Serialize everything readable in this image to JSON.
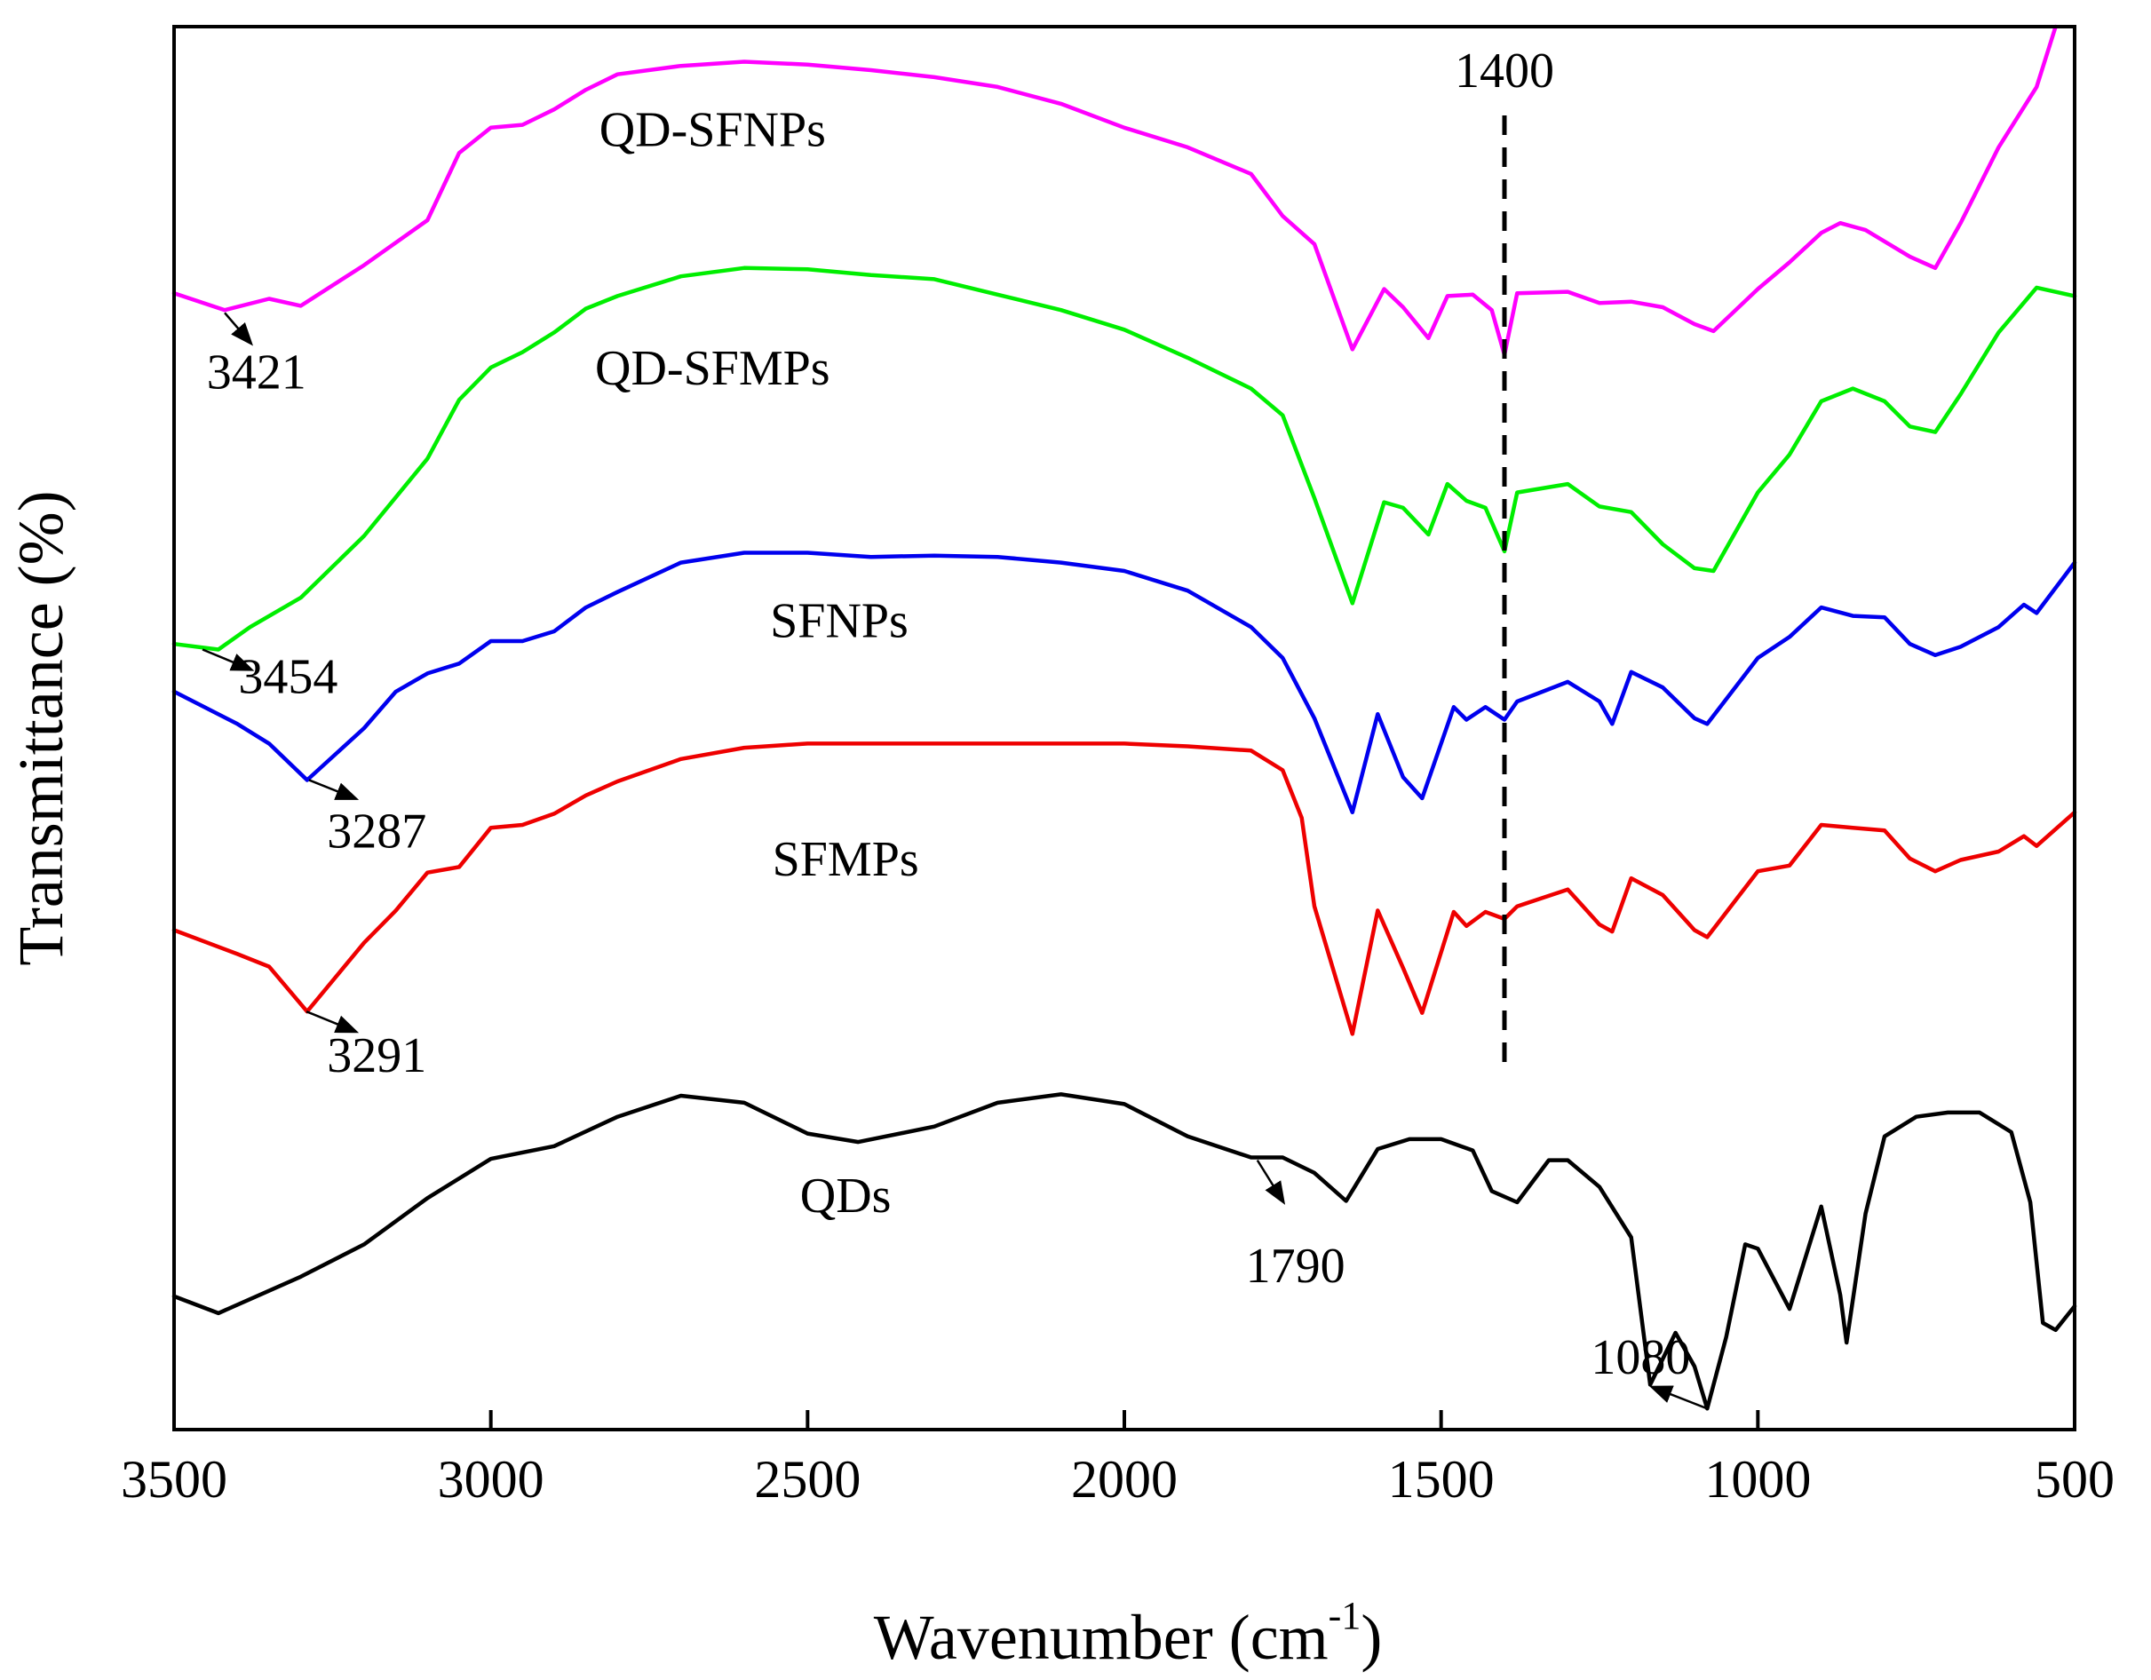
{
  "chart_data": {
    "type": "line",
    "title": "",
    "xlabel": "Wavenumber (cm",
    "xlabel_sup": "-1",
    "xlabel_close": ")",
    "ylabel": "Transmittance (%)",
    "xlim": [
      3500,
      500
    ],
    "x_reversed": true,
    "x_ticks": [
      "3500",
      "3000",
      "2500",
      "2000",
      "1500",
      "1000",
      "500"
    ],
    "x_tick_values": [
      3500,
      3000,
      2500,
      2000,
      1500,
      1000,
      500
    ],
    "ylim": [
      0,
      100
    ],
    "y_ticks_shown": false,
    "grid": false,
    "legend": "none",
    "reference_line": {
      "x": 1400,
      "label": "1400",
      "style": "dashed"
    },
    "series": [
      {
        "name": "QD-SFNPs",
        "color": "#ff00ff",
        "points": [
          [
            3500,
            81
          ],
          [
            3420,
            79.8
          ],
          [
            3350,
            80.6
          ],
          [
            3300,
            80.1
          ],
          [
            3200,
            83
          ],
          [
            3100,
            86.2
          ],
          [
            3050,
            91
          ],
          [
            3000,
            92.8
          ],
          [
            2950,
            93
          ],
          [
            2900,
            94.1
          ],
          [
            2850,
            95.5
          ],
          [
            2800,
            96.6
          ],
          [
            2700,
            97.2
          ],
          [
            2600,
            97.5
          ],
          [
            2500,
            97.3
          ],
          [
            2400,
            96.9
          ],
          [
            2300,
            96.4
          ],
          [
            2200,
            95.7
          ],
          [
            2100,
            94.5
          ],
          [
            2000,
            92.8
          ],
          [
            1900,
            91.4
          ],
          [
            1800,
            89.5
          ],
          [
            1750,
            86.5
          ],
          [
            1700,
            84.5
          ],
          [
            1640,
            77
          ],
          [
            1590,
            81.3
          ],
          [
            1560,
            80
          ],
          [
            1520,
            77.8
          ],
          [
            1490,
            80.8
          ],
          [
            1450,
            80.9
          ],
          [
            1420,
            79.8
          ],
          [
            1400,
            76.6
          ],
          [
            1380,
            81
          ],
          [
            1300,
            81.1
          ],
          [
            1250,
            80.3
          ],
          [
            1200,
            80.4
          ],
          [
            1150,
            80
          ],
          [
            1100,
            78.8
          ],
          [
            1070,
            78.3
          ],
          [
            1000,
            81.3
          ],
          [
            950,
            83.2
          ],
          [
            900,
            85.3
          ],
          [
            870,
            86
          ],
          [
            830,
            85.5
          ],
          [
            760,
            83.6
          ],
          [
            720,
            82.8
          ],
          [
            680,
            86
          ],
          [
            620,
            91.4
          ],
          [
            560,
            95.7
          ],
          [
            530,
            100
          ]
        ]
      },
      {
        "name": "QD-SFMPs",
        "color": "#00ee00",
        "points": [
          [
            3500,
            56
          ],
          [
            3430,
            55.6
          ],
          [
            3380,
            57.2
          ],
          [
            3300,
            59.3
          ],
          [
            3200,
            63.7
          ],
          [
            3100,
            69.2
          ],
          [
            3050,
            73.4
          ],
          [
            3000,
            75.7
          ],
          [
            2950,
            76.8
          ],
          [
            2900,
            78.2
          ],
          [
            2850,
            79.9
          ],
          [
            2800,
            80.8
          ],
          [
            2700,
            82.2
          ],
          [
            2600,
            82.8
          ],
          [
            2500,
            82.7
          ],
          [
            2400,
            82.3
          ],
          [
            2300,
            82
          ],
          [
            2200,
            80.9
          ],
          [
            2100,
            79.8
          ],
          [
            2000,
            78.4
          ],
          [
            1900,
            76.4
          ],
          [
            1800,
            74.2
          ],
          [
            1750,
            72.3
          ],
          [
            1700,
            66.4
          ],
          [
            1640,
            58.9
          ],
          [
            1590,
            66.1
          ],
          [
            1560,
            65.7
          ],
          [
            1520,
            63.8
          ],
          [
            1490,
            67.4
          ],
          [
            1460,
            66.2
          ],
          [
            1430,
            65.7
          ],
          [
            1400,
            62.6
          ],
          [
            1380,
            66.8
          ],
          [
            1300,
            67.4
          ],
          [
            1250,
            65.8
          ],
          [
            1200,
            65.4
          ],
          [
            1150,
            63.1
          ],
          [
            1100,
            61.4
          ],
          [
            1070,
            61.2
          ],
          [
            1000,
            66.8
          ],
          [
            950,
            69.5
          ],
          [
            900,
            73.3
          ],
          [
            850,
            74.2
          ],
          [
            800,
            73.3
          ],
          [
            760,
            71.5
          ],
          [
            720,
            71.1
          ],
          [
            680,
            73.8
          ],
          [
            620,
            78.2
          ],
          [
            560,
            81.4
          ],
          [
            500,
            80.8
          ]
        ]
      },
      {
        "name": "SFNPs",
        "color": "#0000ee",
        "points": [
          [
            3500,
            52.6
          ],
          [
            3400,
            50.3
          ],
          [
            3350,
            48.9
          ],
          [
            3290,
            46.3
          ],
          [
            3200,
            50
          ],
          [
            3150,
            52.6
          ],
          [
            3100,
            53.9
          ],
          [
            3050,
            54.6
          ],
          [
            3000,
            56.2
          ],
          [
            2950,
            56.2
          ],
          [
            2900,
            56.9
          ],
          [
            2850,
            58.6
          ],
          [
            2800,
            59.7
          ],
          [
            2700,
            61.8
          ],
          [
            2600,
            62.5
          ],
          [
            2500,
            62.5
          ],
          [
            2400,
            62.2
          ],
          [
            2300,
            62.3
          ],
          [
            2200,
            62.2
          ],
          [
            2100,
            61.8
          ],
          [
            2000,
            61.2
          ],
          [
            1900,
            59.8
          ],
          [
            1800,
            57.2
          ],
          [
            1750,
            55
          ],
          [
            1700,
            50.7
          ],
          [
            1640,
            44
          ],
          [
            1600,
            51
          ],
          [
            1560,
            46.5
          ],
          [
            1530,
            45
          ],
          [
            1480,
            51.5
          ],
          [
            1460,
            50.6
          ],
          [
            1430,
            51.5
          ],
          [
            1400,
            50.6
          ],
          [
            1380,
            51.9
          ],
          [
            1300,
            53.3
          ],
          [
            1250,
            51.9
          ],
          [
            1230,
            50.3
          ],
          [
            1200,
            54
          ],
          [
            1150,
            52.9
          ],
          [
            1100,
            50.7
          ],
          [
            1080,
            50.3
          ],
          [
            1000,
            55
          ],
          [
            950,
            56.5
          ],
          [
            900,
            58.6
          ],
          [
            850,
            58
          ],
          [
            800,
            57.9
          ],
          [
            760,
            56
          ],
          [
            720,
            55.2
          ],
          [
            680,
            55.8
          ],
          [
            620,
            57.2
          ],
          [
            580,
            58.8
          ],
          [
            560,
            58.2
          ],
          [
            500,
            61.8
          ]
        ]
      },
      {
        "name": "SFMPs",
        "color": "#ee0000",
        "points": [
          [
            3500,
            35.6
          ],
          [
            3400,
            33.9
          ],
          [
            3350,
            33
          ],
          [
            3290,
            29.8
          ],
          [
            3200,
            34.7
          ],
          [
            3150,
            37
          ],
          [
            3100,
            39.7
          ],
          [
            3050,
            40.1
          ],
          [
            3000,
            42.9
          ],
          [
            2950,
            43.1
          ],
          [
            2900,
            43.9
          ],
          [
            2850,
            45.2
          ],
          [
            2800,
            46.2
          ],
          [
            2700,
            47.8
          ],
          [
            2600,
            48.6
          ],
          [
            2500,
            48.9
          ],
          [
            2400,
            48.9
          ],
          [
            2300,
            48.9
          ],
          [
            2200,
            48.9
          ],
          [
            2100,
            48.9
          ],
          [
            2000,
            48.9
          ],
          [
            1900,
            48.7
          ],
          [
            1800,
            48.4
          ],
          [
            1750,
            47
          ],
          [
            1720,
            43.6
          ],
          [
            1700,
            37.3
          ],
          [
            1640,
            28.2
          ],
          [
            1600,
            37
          ],
          [
            1560,
            32.9
          ],
          [
            1530,
            29.7
          ],
          [
            1480,
            36.9
          ],
          [
            1460,
            35.9
          ],
          [
            1430,
            36.9
          ],
          [
            1400,
            36.4
          ],
          [
            1380,
            37.3
          ],
          [
            1300,
            38.5
          ],
          [
            1250,
            36
          ],
          [
            1230,
            35.5
          ],
          [
            1200,
            39.3
          ],
          [
            1150,
            38.1
          ],
          [
            1100,
            35.6
          ],
          [
            1080,
            35.1
          ],
          [
            1000,
            39.8
          ],
          [
            950,
            40.2
          ],
          [
            900,
            43.1
          ],
          [
            850,
            42.9
          ],
          [
            800,
            42.7
          ],
          [
            760,
            40.7
          ],
          [
            720,
            39.8
          ],
          [
            680,
            40.6
          ],
          [
            620,
            41.2
          ],
          [
            580,
            42.3
          ],
          [
            560,
            41.6
          ],
          [
            500,
            44
          ]
        ]
      },
      {
        "name": "QDs",
        "color": "#000000",
        "points": [
          [
            3500,
            9.5
          ],
          [
            3430,
            8.3
          ],
          [
            3300,
            10.9
          ],
          [
            3200,
            13.2
          ],
          [
            3100,
            16.5
          ],
          [
            3000,
            19.3
          ],
          [
            2900,
            20.2
          ],
          [
            2800,
            22.3
          ],
          [
            2700,
            23.8
          ],
          [
            2600,
            23.3
          ],
          [
            2500,
            21.1
          ],
          [
            2420,
            20.5
          ],
          [
            2300,
            21.6
          ],
          [
            2200,
            23.3
          ],
          [
            2100,
            23.9
          ],
          [
            2000,
            23.2
          ],
          [
            1900,
            20.9
          ],
          [
            1800,
            19.4
          ],
          [
            1750,
            19.4
          ],
          [
            1700,
            18.3
          ],
          [
            1650,
            16.3
          ],
          [
            1600,
            20
          ],
          [
            1550,
            20.7
          ],
          [
            1500,
            20.7
          ],
          [
            1450,
            19.9
          ],
          [
            1420,
            17
          ],
          [
            1380,
            16.2
          ],
          [
            1330,
            19.2
          ],
          [
            1300,
            19.2
          ],
          [
            1250,
            17.3
          ],
          [
            1200,
            13.7
          ],
          [
            1170,
            3.2
          ],
          [
            1130,
            6.9
          ],
          [
            1100,
            4.5
          ],
          [
            1080,
            1.5
          ],
          [
            1050,
            6.6
          ],
          [
            1020,
            13.2
          ],
          [
            1000,
            12.9
          ],
          [
            950,
            8.6
          ],
          [
            900,
            15.9
          ],
          [
            870,
            9.6
          ],
          [
            860,
            6.2
          ],
          [
            830,
            15.4
          ],
          [
            800,
            20.9
          ],
          [
            750,
            22.3
          ],
          [
            700,
            22.6
          ],
          [
            650,
            22.6
          ],
          [
            600,
            21.2
          ],
          [
            570,
            16.2
          ],
          [
            550,
            7.6
          ],
          [
            530,
            7.1
          ],
          [
            500,
            8.8
          ]
        ]
      }
    ],
    "curve_labels": [
      {
        "text": "QD-SFNPs",
        "x": 2650,
        "y": 91.5
      },
      {
        "text": "QD-SFMPs",
        "x": 2650,
        "y": 74.5
      },
      {
        "text": "SFNPs",
        "x": 2450,
        "y": 56.5
      },
      {
        "text": "SFMPs",
        "x": 2440,
        "y": 39.5
      },
      {
        "text": "QDs",
        "x": 2440,
        "y": 15.5
      }
    ],
    "annotations": [
      {
        "text": "3421",
        "tx": 3370,
        "ty": 74.2,
        "ax0": 3420,
        "ay0": 79.6,
        "ax1": 3380,
        "ay1": 77.5
      },
      {
        "text": "3454",
        "tx": 3320,
        "ty": 52.5,
        "ax0": 3455,
        "ay0": 55.6,
        "ax1": 3380,
        "ay1": 54.2
      },
      {
        "text": "3287",
        "tx": 3180,
        "ty": 41.5,
        "ax0": 3287,
        "ay0": 46.3,
        "ax1": 3215,
        "ay1": 45
      },
      {
        "text": "3291",
        "tx": 3180,
        "ty": 25.5,
        "ax0": 3291,
        "ay0": 29.8,
        "ax1": 3215,
        "ay1": 28.4
      },
      {
        "text": "1790",
        "tx": 1730,
        "ty": 10.5,
        "ax0": 1790,
        "ay0": 19.2,
        "ax1": 1750,
        "ay1": 16.3
      },
      {
        "text": "1080",
        "tx": 1185,
        "ty": 4.0,
        "ax0": 1080,
        "ay0": 1.5,
        "ax1": 1165,
        "ay1": 3.0
      }
    ]
  }
}
